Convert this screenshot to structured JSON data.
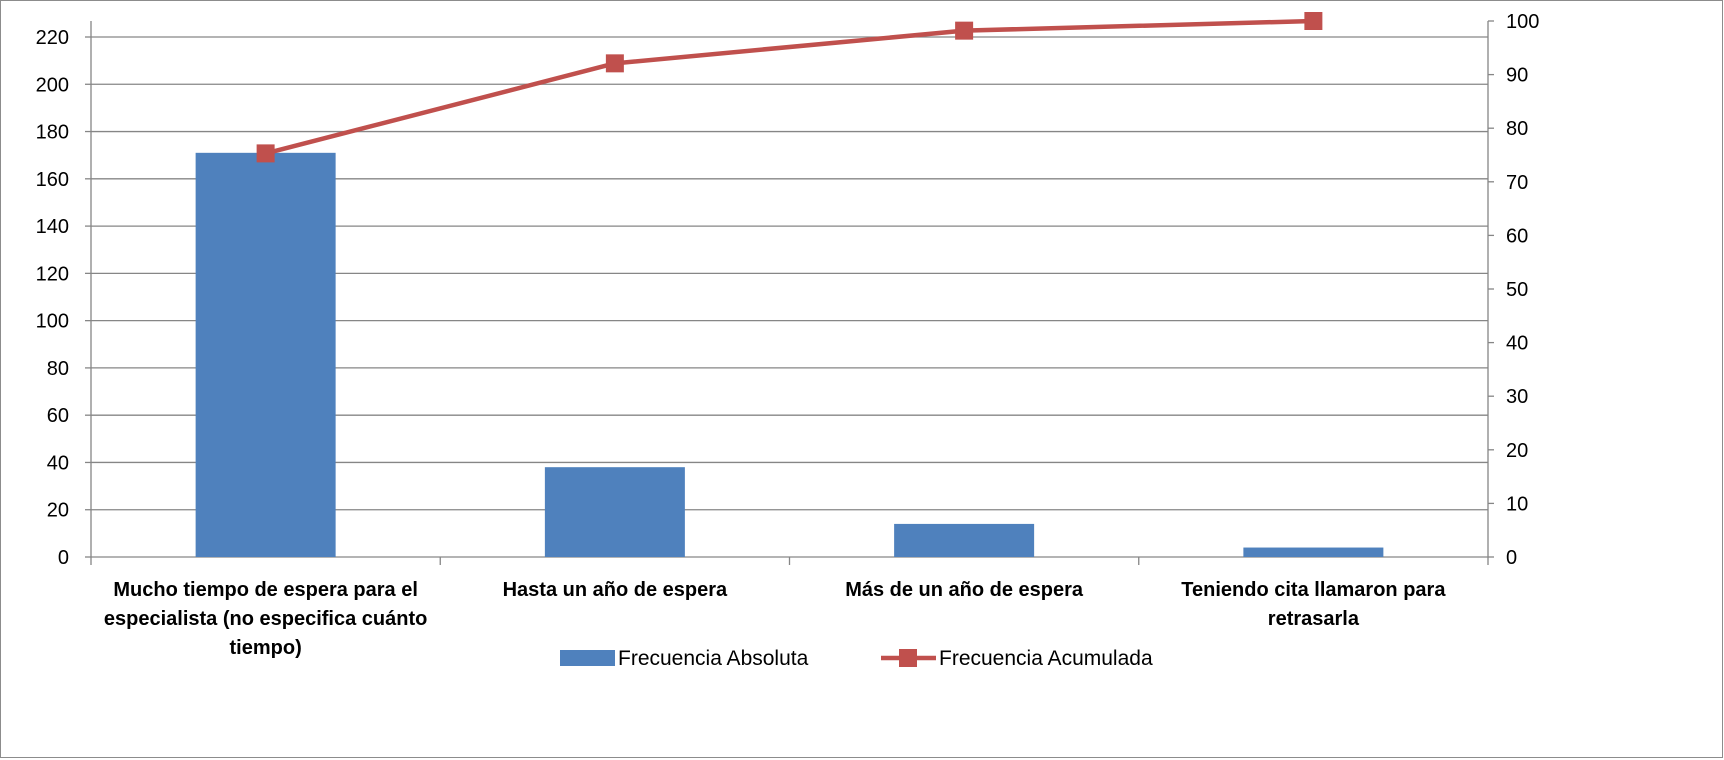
{
  "chart_data": {
    "type": "bar",
    "categories": [
      [
        "Mucho tiempo de espera para el",
        "especialista (no especifica cuánto",
        "tiempo)"
      ],
      [
        "Hasta un año de espera"
      ],
      [
        "Más de un año de espera"
      ],
      [
        "Teniendo cita llamaron para",
        "retrasarla"
      ]
    ],
    "series": [
      {
        "name": "Frecuencia Absoluta",
        "type": "bar",
        "axis": "left",
        "color": "#4F81BD",
        "values": [
          171,
          38,
          14,
          4
        ]
      },
      {
        "name": "Frecuencia Acumulada",
        "type": "line",
        "axis": "right",
        "color": "#C0504D",
        "marker": "square",
        "values": [
          75.3,
          92.1,
          98.2,
          100
        ]
      }
    ],
    "y_left": {
      "ylim": [
        0,
        220
      ],
      "ticks": [
        0,
        20,
        40,
        60,
        80,
        100,
        120,
        140,
        160,
        180,
        200,
        220
      ]
    },
    "y_right": {
      "ylim": [
        0,
        100
      ],
      "ticks": [
        0,
        10,
        20,
        30,
        40,
        50,
        60,
        70,
        80,
        90,
        100
      ]
    },
    "grid": true,
    "legend": "bottom"
  }
}
